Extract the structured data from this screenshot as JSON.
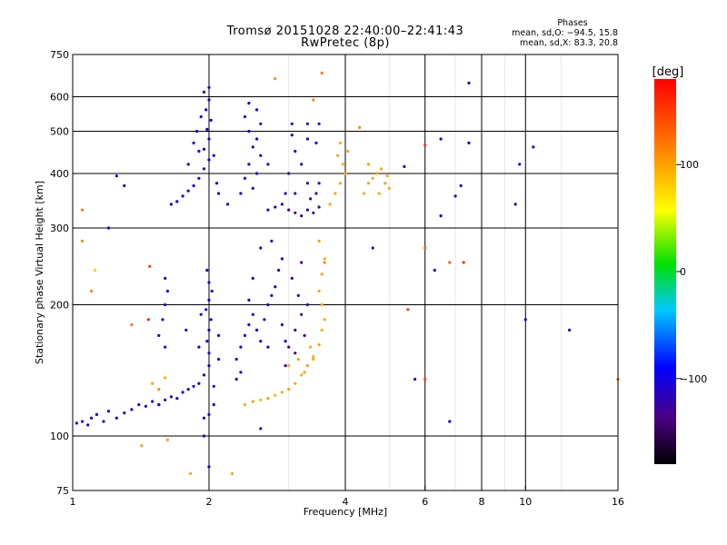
{
  "title": "Tromsø 20151028 22:40:00–22:41:43",
  "subtitle": "RwPretec (8p)",
  "stats": {
    "heading": "Phases",
    "line_o": "mean, sd,O: −94.5, 15.8",
    "line_x": "mean, sd,X: 83.3, 20.8"
  },
  "colorbar": {
    "label": "[deg]",
    "ticks": [
      {
        "value": 100,
        "label": "100"
      },
      {
        "value": 0,
        "label": "0"
      },
      {
        "value": -100,
        "label": "−100"
      }
    ]
  },
  "chart_data": {
    "type": "scatter",
    "xlabel": "Frequency [MHz]",
    "ylabel": "Stationary phase Virtual Height [km]",
    "xscale": "log",
    "yscale": "log",
    "xlim": [
      1,
      16
    ],
    "ylim": [
      75,
      750
    ],
    "xticks": [
      {
        "v": 1,
        "l": "1"
      },
      {
        "v": 2,
        "l": "2"
      },
      {
        "v": 4,
        "l": "4"
      },
      {
        "v": 6,
        "l": "6"
      },
      {
        "v": 8,
        "l": "8"
      },
      {
        "v": 10,
        "l": "10"
      },
      {
        "v": 16,
        "l": "16"
      }
    ],
    "yticks": [
      {
        "v": 75,
        "l": "75"
      },
      {
        "v": 100,
        "l": "100"
      },
      {
        "v": 200,
        "l": "200"
      },
      {
        "v": 300,
        "l": "300"
      },
      {
        "v": 400,
        "l": "400"
      },
      {
        "v": 500,
        "l": "500"
      },
      {
        "v": 600,
        "l": "600"
      },
      {
        "v": 750,
        "l": "750"
      }
    ],
    "vgrid": [
      2,
      4,
      6,
      8,
      10
    ],
    "vminor": [
      3,
      5,
      7,
      9,
      12
    ],
    "hgrid": [
      100,
      200,
      300,
      400,
      500,
      600
    ],
    "color_scale": {
      "min": -180,
      "max": 180,
      "unit": "deg"
    },
    "series": [
      {
        "points": [
          [
            1.02,
            107,
            -100
          ],
          [
            1.05,
            108,
            -100
          ],
          [
            1.08,
            106,
            -95
          ],
          [
            1.1,
            110,
            -100
          ],
          [
            1.13,
            112,
            -100
          ],
          [
            1.17,
            108,
            -110
          ],
          [
            1.2,
            114,
            -100
          ],
          [
            1.25,
            110,
            -100
          ],
          [
            1.3,
            113,
            -100
          ],
          [
            1.35,
            115,
            -105
          ],
          [
            1.4,
            118,
            -100
          ],
          [
            1.45,
            117,
            -100
          ],
          [
            1.5,
            120,
            -95
          ],
          [
            1.55,
            118,
            -100
          ],
          [
            1.6,
            121,
            -100
          ],
          [
            1.65,
            123,
            -110
          ],
          [
            1.7,
            122,
            -100
          ],
          [
            1.75,
            126,
            -100
          ],
          [
            1.8,
            128,
            -100
          ],
          [
            1.85,
            130,
            -95
          ],
          [
            1.9,
            132,
            -100
          ],
          [
            1.95,
            138,
            -100
          ],
          [
            2.0,
            145,
            -100
          ],
          [
            2.0,
            155,
            -105
          ],
          [
            1.98,
            165,
            -100
          ],
          [
            2.0,
            175,
            -100
          ],
          [
            2.02,
            185,
            -100
          ],
          [
            1.97,
            195,
            -100
          ],
          [
            2.0,
            205,
            -110
          ],
          [
            2.03,
            215,
            -100
          ],
          [
            2.0,
            225,
            -100
          ],
          [
            1.98,
            240,
            -100
          ],
          [
            2.05,
            130,
            -100
          ],
          [
            2.05,
            118,
            -100
          ],
          [
            1.95,
            110,
            -100
          ],
          [
            2.0,
            112,
            -100
          ],
          [
            2.1,
            150,
            -100
          ],
          [
            2.1,
            170,
            -100
          ],
          [
            1.9,
            160,
            -100
          ],
          [
            1.92,
            190,
            -100
          ],
          [
            1.55,
            170,
            -100
          ],
          [
            1.58,
            185,
            -100
          ],
          [
            1.6,
            200,
            -100
          ],
          [
            1.62,
            215,
            -100
          ],
          [
            1.6,
            230,
            -100
          ],
          [
            1.6,
            160,
            -100
          ]
        ]
      },
      {
        "points": [
          [
            2.3,
            150,
            -100
          ],
          [
            2.35,
            160,
            -105
          ],
          [
            2.4,
            170,
            -100
          ],
          [
            2.45,
            180,
            -100
          ],
          [
            2.5,
            190,
            -100
          ],
          [
            2.55,
            175,
            -95
          ],
          [
            2.6,
            165,
            -100
          ],
          [
            2.65,
            185,
            -100
          ],
          [
            2.7,
            200,
            -100
          ],
          [
            2.75,
            210,
            -100
          ],
          [
            2.8,
            220,
            -100
          ],
          [
            2.85,
            240,
            -100
          ],
          [
            2.9,
            255,
            -100
          ],
          [
            2.75,
            280,
            -100
          ],
          [
            2.6,
            270,
            -100
          ],
          [
            2.5,
            230,
            -100
          ],
          [
            2.45,
            205,
            -100
          ],
          [
            2.9,
            180,
            -120
          ],
          [
            2.95,
            165,
            -100
          ],
          [
            2.7,
            160,
            -100
          ],
          [
            2.35,
            140,
            -100
          ],
          [
            2.3,
            135,
            -100
          ]
        ]
      },
      {
        "points": [
          [
            3.0,
            160,
            -130
          ],
          [
            3.1,
            175,
            -140
          ],
          [
            3.2,
            190,
            -130
          ],
          [
            3.15,
            210,
            -120
          ],
          [
            3.05,
            230,
            -130
          ],
          [
            3.2,
            250,
            -140
          ],
          [
            3.3,
            200,
            -120
          ],
          [
            3.1,
            155,
            -130
          ],
          [
            2.95,
            145,
            -125
          ],
          [
            3.25,
            170,
            -135
          ]
        ]
      },
      {
        "points": [
          [
            2.4,
            118,
            95
          ],
          [
            2.5,
            120,
            100
          ],
          [
            2.6,
            121,
            95
          ],
          [
            2.7,
            122,
            100
          ],
          [
            2.8,
            124,
            90
          ],
          [
            2.9,
            126,
            95
          ],
          [
            3.0,
            128,
            100
          ],
          [
            3.1,
            132,
            95
          ],
          [
            3.2,
            138,
            95
          ],
          [
            3.3,
            145,
            100
          ],
          [
            3.4,
            152,
            95
          ],
          [
            3.5,
            162,
            100
          ],
          [
            3.55,
            175,
            95
          ],
          [
            3.6,
            185,
            100
          ],
          [
            3.55,
            200,
            95
          ],
          [
            3.5,
            215,
            100
          ],
          [
            3.55,
            235,
            100
          ],
          [
            3.6,
            255,
            95
          ],
          [
            3.5,
            280,
            100
          ],
          [
            3.4,
            150,
            95
          ],
          [
            3.25,
            140,
            100
          ],
          [
            3.0,
            145,
            95
          ],
          [
            3.15,
            150,
            100
          ],
          [
            3.35,
            160,
            95
          ],
          [
            1.5,
            132,
            100
          ],
          [
            1.55,
            128,
            110
          ],
          [
            1.6,
            136,
            95
          ]
        ]
      },
      {
        "points": [
          [
            1.65,
            340,
            -100
          ],
          [
            1.7,
            345,
            -100
          ],
          [
            1.75,
            355,
            -100
          ],
          [
            1.8,
            365,
            -100
          ],
          [
            1.85,
            375,
            -95
          ],
          [
            1.9,
            390,
            -100
          ],
          [
            1.95,
            410,
            -100
          ],
          [
            2.0,
            430,
            -100
          ],
          [
            1.95,
            455,
            -105
          ],
          [
            2.0,
            480,
            -100
          ],
          [
            1.98,
            505,
            -100
          ],
          [
            2.02,
            530,
            -100
          ],
          [
            1.97,
            560,
            -100
          ],
          [
            2.0,
            590,
            -100
          ],
          [
            1.95,
            615,
            -110
          ],
          [
            2.0,
            630,
            -100
          ],
          [
            1.9,
            450,
            -100
          ],
          [
            1.88,
            500,
            -100
          ],
          [
            1.92,
            540,
            -100
          ],
          [
            2.05,
            440,
            -100
          ],
          [
            2.08,
            380,
            -100
          ],
          [
            2.1,
            360,
            -100
          ],
          [
            1.8,
            420,
            -100
          ],
          [
            1.85,
            470,
            -100
          ]
        ]
      },
      {
        "points": [
          [
            2.35,
            360,
            -100
          ],
          [
            2.4,
            390,
            -100
          ],
          [
            2.45,
            420,
            -100
          ],
          [
            2.5,
            460,
            -100
          ],
          [
            2.45,
            500,
            -100
          ],
          [
            2.4,
            540,
            -105
          ],
          [
            2.45,
            580,
            -100
          ],
          [
            2.55,
            560,
            -100
          ],
          [
            2.6,
            520,
            -100
          ],
          [
            2.55,
            480,
            -100
          ],
          [
            2.6,
            440,
            -100
          ],
          [
            2.55,
            400,
            -100
          ],
          [
            2.5,
            370,
            -100
          ],
          [
            2.7,
            420,
            -100
          ]
        ]
      },
      {
        "points": [
          [
            2.7,
            330,
            -100
          ],
          [
            2.8,
            335,
            -100
          ],
          [
            2.9,
            340,
            -105
          ],
          [
            3.0,
            330,
            -120
          ],
          [
            3.1,
            325,
            -130
          ],
          [
            3.2,
            320,
            -140
          ],
          [
            3.3,
            330,
            -125
          ],
          [
            3.4,
            325,
            -135
          ],
          [
            3.5,
            335,
            -120
          ],
          [
            3.45,
            360,
            -120
          ],
          [
            3.3,
            380,
            -130
          ],
          [
            3.2,
            420,
            -120
          ],
          [
            3.1,
            450,
            -115
          ],
          [
            3.05,
            490,
            -110
          ],
          [
            3.3,
            480,
            -115
          ],
          [
            3.45,
            470,
            -110
          ],
          [
            3.5,
            520,
            -105
          ],
          [
            3.3,
            520,
            -110
          ],
          [
            3.05,
            520,
            -110
          ],
          [
            3.0,
            400,
            -120
          ],
          [
            3.1,
            360,
            -125
          ],
          [
            3.35,
            350,
            -130
          ],
          [
            3.5,
            380,
            -115
          ],
          [
            2.95,
            360,
            -120
          ]
        ]
      },
      {
        "points": [
          [
            3.7,
            340,
            95
          ],
          [
            3.8,
            360,
            100
          ],
          [
            3.9,
            380,
            95
          ],
          [
            4.0,
            400,
            100
          ],
          [
            3.95,
            420,
            95
          ],
          [
            4.05,
            450,
            100
          ],
          [
            3.9,
            470,
            95
          ],
          [
            4.4,
            360,
            95
          ],
          [
            4.5,
            380,
            100
          ],
          [
            4.6,
            390,
            95
          ],
          [
            4.7,
            400,
            100
          ],
          [
            4.8,
            410,
            95
          ],
          [
            4.9,
            380,
            100
          ],
          [
            5.0,
            370,
            100
          ],
          [
            4.75,
            360,
            100
          ],
          [
            4.95,
            395,
            95
          ],
          [
            4.5,
            420,
            100
          ],
          [
            3.85,
            440,
            100
          ]
        ]
      },
      {
        "points": [
          [
            1.05,
            330,
            120
          ],
          [
            1.05,
            280,
            110
          ],
          [
            1.12,
            240,
            80
          ],
          [
            1.1,
            215,
            110
          ],
          [
            1.2,
            300,
            -100
          ],
          [
            1.25,
            395,
            -100
          ],
          [
            1.3,
            375,
            -100
          ],
          [
            1.35,
            180,
            120
          ],
          [
            1.42,
            95,
            100
          ],
          [
            1.48,
            245,
            150
          ],
          [
            1.47,
            185,
            160
          ],
          [
            1.55,
            118,
            -110
          ],
          [
            1.62,
            98,
            100
          ],
          [
            1.78,
            175,
            -100
          ],
          [
            1.82,
            82,
            100
          ],
          [
            2.25,
            82,
            100
          ],
          [
            2.2,
            340,
            -100
          ],
          [
            2.6,
            104,
            -100
          ],
          [
            2.8,
            660,
            110
          ],
          [
            3.55,
            680,
            120
          ],
          [
            3.4,
            590,
            110
          ],
          [
            4.3,
            510,
            110
          ],
          [
            4.6,
            270,
            -120
          ],
          [
            5.5,
            195,
            150
          ],
          [
            5.7,
            135,
            -100
          ],
          [
            6.0,
            465,
            150
          ],
          [
            6.0,
            270,
            130
          ],
          [
            6.0,
            135,
            150
          ],
          [
            6.5,
            320,
            -100
          ],
          [
            6.5,
            480,
            -100
          ],
          [
            6.8,
            250,
            130
          ],
          [
            6.8,
            108,
            -100
          ],
          [
            7.0,
            355,
            -100
          ],
          [
            7.2,
            375,
            -100
          ],
          [
            7.3,
            250,
            155
          ],
          [
            7.5,
            470,
            -100
          ],
          [
            7.5,
            645,
            -100
          ],
          [
            9.5,
            340,
            -100
          ],
          [
            9.7,
            420,
            -100
          ],
          [
            10.4,
            460,
            -100
          ],
          [
            10.0,
            185,
            -100
          ],
          [
            12.5,
            175,
            -100
          ],
          [
            16,
            135,
            120
          ],
          [
            6.3,
            240,
            -100
          ],
          [
            5.4,
            415,
            -100
          ],
          [
            3.6,
            250,
            110
          ],
          [
            1.95,
            100,
            -100
          ],
          [
            2.0,
            85,
            -100
          ]
        ]
      }
    ]
  }
}
